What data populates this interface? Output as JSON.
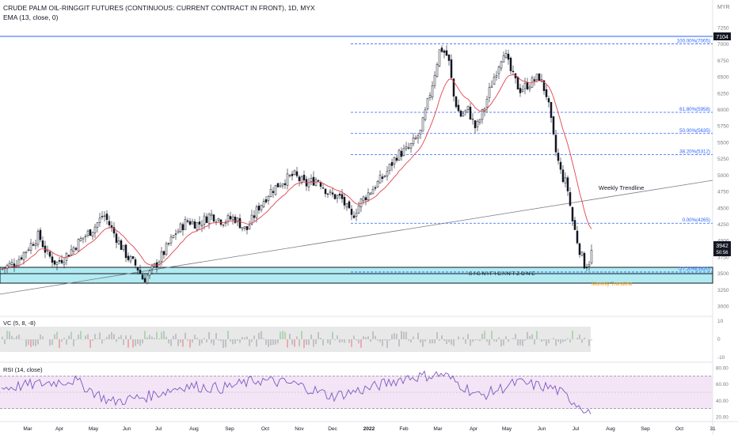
{
  "header": {
    "title": "CRUDE PALM OIL-RINGGIT FUTURES (CONTINUOUS: CURRENT CONTRACT IN FRONT), 1D, MYX",
    "indicator": "EMA (13, close, 0)",
    "currency": "MYR"
  },
  "price_axis": {
    "ticks": [
      "7250",
      "7000",
      "6750",
      "6500",
      "6250",
      "6000",
      "5750",
      "5500",
      "5250",
      "5000",
      "4750",
      "4500",
      "4250",
      "4000",
      "3750",
      "3500",
      "3250",
      "3000"
    ],
    "last_price_label": "3942",
    "countdown_label": "50:56",
    "ath_label": "7104"
  },
  "time_axis": {
    "labels": [
      "Mar",
      "Apr",
      "May",
      "Jun",
      "Jul",
      "Aug",
      "Sep",
      "Oct",
      "Nov",
      "Dec",
      "2022",
      "Feb",
      "Mar",
      "Apr",
      "May",
      "Jun",
      "Jul",
      "Aug",
      "Sep",
      "Oct",
      "31"
    ]
  },
  "fib_levels": [
    {
      "label": "100.00%(7005)",
      "value": 7005
    },
    {
      "label": "61.80%(5958)",
      "value": 5958
    },
    {
      "label": "50.00%(5635)",
      "value": 5635
    },
    {
      "label": "38.20%(5312)",
      "value": 5312
    },
    {
      "label": "0.00%(4265)",
      "value": 4265
    },
    {
      "label": "-27.20%(3520)",
      "value": 3520
    }
  ],
  "annotations": {
    "weekly_trendline": "Weekly Trendline",
    "significant_zone": "S I G N I F I C A N T   Z O N E",
    "monthly_trendline": "Monthly Trendline"
  },
  "vc_panel": {
    "title": "VC (5, 8, -8)",
    "ticks": [
      "10",
      "0",
      "-10"
    ]
  },
  "rsi_panel": {
    "title": "RSI (14, close)",
    "ticks": [
      "80.00",
      "60.00",
      "40.00",
      "20.00"
    ]
  },
  "colors": {
    "bull": "#ffffff",
    "bear": "#131722",
    "ema": "#e0434f",
    "fib": "#2962ff",
    "zone": "#b2ebf2",
    "rsi_line": "#7e57c2",
    "rsi_band": "#f3e5f5",
    "monthly_trend": "#ff9800"
  },
  "chart_data": [
    {
      "type": "candlestick",
      "title": "CRUDE PALM OIL-RINGGIT FUTURES (CONTINUOUS: CURRENT CONTRACT IN FRONT), 1D, MYX",
      "ylabel": "MYR",
      "ylim": [
        2900,
        7400
      ],
      "x": [
        "Mar",
        "Apr",
        "May",
        "Jun",
        "Jul",
        "Aug",
        "Sep",
        "Oct",
        "Nov",
        "Dec",
        "2022",
        "Feb",
        "Mar",
        "Apr",
        "May",
        "Jun",
        "Jul"
      ],
      "series": [
        {
          "name": "Close",
          "values": [
            3700,
            3850,
            4300,
            3620,
            3700,
            4150,
            4300,
            4700,
            4900,
            4600,
            4800,
            5600,
            6900,
            5900,
            6700,
            6300,
            3942
          ]
        },
        {
          "name": "EMA (13, close, 0)",
          "values": [
            3650,
            3800,
            4150,
            3750,
            3700,
            4050,
            4250,
            4600,
            4850,
            4650,
            4750,
            5500,
            6500,
            6100,
            6400,
            6300,
            4200
          ]
        }
      ],
      "last_close": 3942,
      "all_time_high_label": 7104,
      "fib_retracement": [
        7005,
        5958,
        5635,
        5312,
        4265,
        3520
      ]
    },
    {
      "type": "bar",
      "title": "VC (5, 8, -8)",
      "ylim": [
        -10,
        10
      ]
    },
    {
      "type": "line",
      "title": "RSI (14, close)",
      "ylim": [
        20,
        80
      ],
      "bands": [
        30,
        70
      ],
      "x": [
        "Mar",
        "Apr",
        "May",
        "Jun",
        "Jul",
        "Aug",
        "Sep",
        "Oct",
        "Nov",
        "Dec",
        "2022",
        "Feb",
        "Mar",
        "Apr",
        "May",
        "Jun",
        "Jul"
      ],
      "series": [
        {
          "name": "RSI",
          "values": [
            55,
            60,
            65,
            38,
            45,
            58,
            55,
            65,
            60,
            45,
            55,
            68,
            72,
            45,
            62,
            55,
            25
          ]
        }
      ]
    }
  ]
}
